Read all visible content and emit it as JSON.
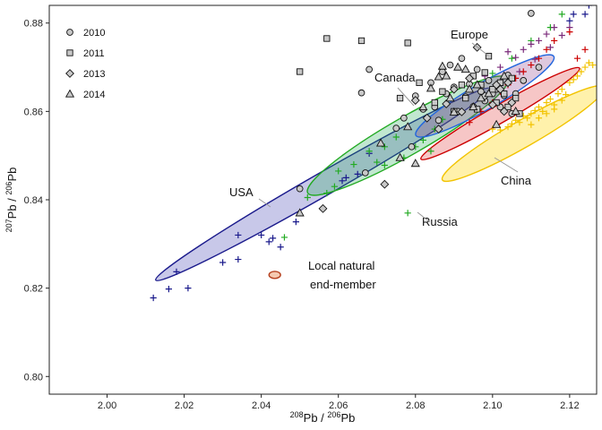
{
  "chart_data": {
    "type": "scatter",
    "xlabel": {
      "sup": "208",
      "text": "Pb / ",
      "sup2": "206",
      "text2": "Pb"
    },
    "ylabel": {
      "sup": "207",
      "text": "Pb / ",
      "sup2": "206",
      "text2": "Pb"
    },
    "xlim": [
      1.985,
      2.127
    ],
    "ylim": [
      0.796,
      0.884
    ],
    "xticks": [
      2.0,
      2.02,
      2.04,
      2.06,
      2.08,
      2.1,
      2.12
    ],
    "yticks": [
      0.8,
      0.82,
      0.84,
      0.86,
      0.88
    ],
    "xtick_labels": [
      "2.00",
      "2.02",
      "2.04",
      "2.06",
      "2.08",
      "2.10",
      "2.12"
    ],
    "ytick_labels": [
      "0.80",
      "0.82",
      "0.84",
      "0.86",
      "0.88"
    ],
    "legend": [
      {
        "label": "2010",
        "marker": "circle"
      },
      {
        "label": "2011",
        "marker": "square"
      },
      {
        "label": "2013",
        "marker": "diamond"
      },
      {
        "label": "2014",
        "marker": "triangle"
      }
    ],
    "region_labels": {
      "europe": "Europe",
      "canada": "Canada",
      "usa": "USA",
      "china": "China",
      "russia": "Russia",
      "local_line1": "Local natural",
      "local_line2": "end-member"
    },
    "colors": {
      "usa": "#1a1a8c",
      "usa_fill": "#3b3bb0",
      "canada": "#22aa22",
      "canada_fill": "#22aa55",
      "europe": "#2266dd",
      "europe_fill": "#8a3a8a",
      "russia": "#cc0000",
      "russia_fill": "#dd3333",
      "china": "#f2c300",
      "china_fill": "#ffe566",
      "local": "#b5401e",
      "local_fill": "#f4c4a8"
    },
    "ellipses": [
      {
        "name": "usa",
        "cx": 2.056,
        "cy": 0.8435,
        "len": 0.097,
        "wid": 0.0052,
        "angle_deg": 33.2
      },
      {
        "name": "canada",
        "cx": 2.078,
        "cy": 0.8545,
        "len": 0.058,
        "wid": 0.0085,
        "angle_deg": 33.2
      },
      {
        "name": "europe",
        "cx": 2.098,
        "cy": 0.8635,
        "len": 0.04,
        "wid": 0.006,
        "angle_deg": 33.2
      },
      {
        "name": "russia",
        "cx": 2.102,
        "cy": 0.8595,
        "len": 0.046,
        "wid": 0.004,
        "angle_deg": 33.2
      },
      {
        "name": "china",
        "cx": 2.108,
        "cy": 0.855,
        "len": 0.047,
        "wid": 0.006,
        "angle_deg": 33.2
      },
      {
        "name": "local",
        "cx": 2.0435,
        "cy": 0.823,
        "len": 0.003,
        "wid": 0.001,
        "angle_deg": 0
      }
    ],
    "series": [
      {
        "name": "2010",
        "marker": "circle",
        "points": [
          [
            2.05,
            0.8425
          ],
          [
            2.066,
            0.8642
          ],
          [
            2.067,
            0.8461
          ],
          [
            2.068,
            0.8695
          ],
          [
            2.075,
            0.8562
          ],
          [
            2.077,
            0.8585
          ],
          [
            2.079,
            0.852
          ],
          [
            2.08,
            0.8635
          ],
          [
            2.082,
            0.8605
          ],
          [
            2.084,
            0.8665
          ],
          [
            2.085,
            0.861
          ],
          [
            2.086,
            0.858
          ],
          [
            2.087,
            0.869
          ],
          [
            2.088,
            0.864
          ],
          [
            2.089,
            0.8705
          ],
          [
            2.09,
            0.8655
          ],
          [
            2.091,
            0.86
          ],
          [
            2.092,
            0.872
          ],
          [
            2.093,
            0.8633
          ],
          [
            2.094,
            0.8662
          ],
          [
            2.095,
            0.8611
          ],
          [
            2.096,
            0.8695
          ],
          [
            2.097,
            0.8645
          ],
          [
            2.098,
            0.8624
          ],
          [
            2.099,
            0.867
          ],
          [
            2.1,
            0.864
          ],
          [
            2.101,
            0.865
          ],
          [
            2.102,
            0.861
          ],
          [
            2.103,
            0.8636
          ],
          [
            2.104,
            0.8682
          ],
          [
            2.105,
            0.8595
          ],
          [
            2.106,
            0.864
          ],
          [
            2.108,
            0.867
          ],
          [
            2.11,
            0.8822
          ],
          [
            2.112,
            0.87
          ]
        ]
      },
      {
        "name": "2011",
        "marker": "square",
        "points": [
          [
            2.05,
            0.869
          ],
          [
            2.057,
            0.8765
          ],
          [
            2.066,
            0.876
          ],
          [
            2.076,
            0.863
          ],
          [
            2.078,
            0.8755
          ],
          [
            2.081,
            0.8665
          ],
          [
            2.085,
            0.862
          ],
          [
            2.087,
            0.8645
          ],
          [
            2.09,
            0.86
          ],
          [
            2.092,
            0.866
          ],
          [
            2.093,
            0.863
          ],
          [
            2.095,
            0.868
          ],
          [
            2.096,
            0.8605
          ],
          [
            2.097,
            0.866
          ],
          [
            2.098,
            0.8688
          ],
          [
            2.099,
            0.8725
          ],
          [
            2.1,
            0.865
          ],
          [
            2.101,
            0.862
          ],
          [
            2.102,
            0.8665
          ],
          [
            2.103,
            0.864
          ],
          [
            2.104,
            0.861
          ],
          [
            2.105,
            0.8675
          ],
          [
            2.106,
            0.863
          ],
          [
            2.107,
            0.8595
          ]
        ]
      },
      {
        "name": "2013",
        "marker": "diamond",
        "points": [
          [
            2.056,
            0.838
          ],
          [
            2.072,
            0.8435
          ],
          [
            2.08,
            0.8625
          ],
          [
            2.083,
            0.8585
          ],
          [
            2.086,
            0.856
          ],
          [
            2.088,
            0.8617
          ],
          [
            2.09,
            0.865
          ],
          [
            2.092,
            0.8599
          ],
          [
            2.094,
            0.8675
          ],
          [
            2.096,
            0.8745
          ],
          [
            2.098,
            0.8635
          ],
          [
            2.1,
            0.8615
          ],
          [
            2.101,
            0.866
          ],
          [
            2.102,
            0.865
          ],
          [
            2.103,
            0.86
          ],
          [
            2.104,
            0.8665
          ],
          [
            2.105,
            0.862
          ]
        ]
      },
      {
        "name": "2014",
        "marker": "triangle",
        "points": [
          [
            2.05,
            0.837
          ],
          [
            2.071,
            0.8528
          ],
          [
            2.076,
            0.8495
          ],
          [
            2.078,
            0.8565
          ],
          [
            2.08,
            0.8482
          ],
          [
            2.082,
            0.861
          ],
          [
            2.084,
            0.8652
          ],
          [
            2.086,
            0.8678
          ],
          [
            2.087,
            0.8702
          ],
          [
            2.088,
            0.868
          ],
          [
            2.089,
            0.863
          ],
          [
            2.09,
            0.8598
          ],
          [
            2.091,
            0.87
          ],
          [
            2.093,
            0.8695
          ],
          [
            2.094,
            0.865
          ],
          [
            2.095,
            0.861
          ],
          [
            2.096,
            0.866
          ],
          [
            2.097,
            0.863
          ],
          [
            2.099,
            0.864
          ],
          [
            2.101,
            0.857
          ],
          [
            2.103,
            0.868
          ],
          [
            2.106,
            0.86
          ]
        ]
      },
      {
        "name": "USA samples",
        "marker": "plus",
        "color": "#1a1a8c",
        "points": [
          [
            2.012,
            0.8178
          ],
          [
            2.016,
            0.8198
          ],
          [
            2.018,
            0.8237
          ],
          [
            2.021,
            0.82
          ],
          [
            2.03,
            0.8258
          ],
          [
            2.034,
            0.8265
          ],
          [
            2.034,
            0.832
          ],
          [
            2.04,
            0.832
          ],
          [
            2.042,
            0.8305
          ],
          [
            2.043,
            0.8313
          ],
          [
            2.045,
            0.8293
          ],
          [
            2.049,
            0.835
          ],
          [
            2.061,
            0.8443
          ],
          [
            2.062,
            0.845
          ],
          [
            2.065,
            0.8458
          ],
          [
            2.068,
            0.8505
          ],
          [
            2.12,
            0.8805
          ],
          [
            2.121,
            0.882
          ],
          [
            2.124,
            0.882
          ],
          [
            2.125,
            0.884
          ]
        ]
      },
      {
        "name": "Canada samples",
        "marker": "plus",
        "color": "#22aa22",
        "points": [
          [
            2.046,
            0.8315
          ],
          [
            2.052,
            0.8405
          ],
          [
            2.057,
            0.8415
          ],
          [
            2.059,
            0.843
          ],
          [
            2.06,
            0.8465
          ],
          [
            2.064,
            0.848
          ],
          [
            2.068,
            0.851
          ],
          [
            2.07,
            0.8485
          ],
          [
            2.072,
            0.8478
          ],
          [
            2.072,
            0.852
          ],
          [
            2.075,
            0.8542
          ],
          [
            2.077,
            0.8495
          ],
          [
            2.078,
            0.837
          ],
          [
            2.08,
            0.852
          ],
          [
            2.082,
            0.8535
          ],
          [
            2.084,
            0.851
          ],
          [
            2.085,
            0.856
          ],
          [
            2.087,
            0.8582
          ],
          [
            2.09,
            0.86
          ],
          [
            2.093,
            0.863
          ],
          [
            2.096,
            0.866
          ],
          [
            2.1,
            0.8686
          ],
          [
            2.105,
            0.872
          ],
          [
            2.11,
            0.876
          ],
          [
            2.115,
            0.879
          ],
          [
            2.118,
            0.882
          ]
        ]
      },
      {
        "name": "Europe samples",
        "marker": "plus",
        "color": "#7a2a7a",
        "points": [
          [
            2.098,
            0.868
          ],
          [
            2.102,
            0.87
          ],
          [
            2.104,
            0.8735
          ],
          [
            2.106,
            0.8722
          ],
          [
            2.108,
            0.874
          ],
          [
            2.11,
            0.8752
          ],
          [
            2.112,
            0.876
          ],
          [
            2.114,
            0.8775
          ],
          [
            2.116,
            0.879
          ],
          [
            2.118,
            0.8772
          ],
          [
            2.12,
            0.879
          ],
          [
            2.107,
            0.869
          ],
          [
            2.111,
            0.8718
          ],
          [
            2.115,
            0.8745
          ]
        ]
      },
      {
        "name": "Russia samples",
        "marker": "plus",
        "color": "#cc0000",
        "points": [
          [
            2.094,
            0.8575
          ],
          [
            2.097,
            0.86
          ],
          [
            2.1,
            0.862
          ],
          [
            2.102,
            0.8645
          ],
          [
            2.104,
            0.866
          ],
          [
            2.106,
            0.8675
          ],
          [
            2.108,
            0.869
          ],
          [
            2.11,
            0.8705
          ],
          [
            2.112,
            0.872
          ],
          [
            2.114,
            0.874
          ],
          [
            2.116,
            0.876
          ],
          [
            2.12,
            0.878
          ],
          [
            2.122,
            0.872
          ],
          [
            2.124,
            0.874
          ]
        ]
      },
      {
        "name": "China samples",
        "marker": "plus",
        "color": "#f2c300",
        "points": [
          [
            2.1,
            0.856
          ],
          [
            2.102,
            0.8558
          ],
          [
            2.104,
            0.8565
          ],
          [
            2.105,
            0.8572
          ],
          [
            2.106,
            0.858
          ],
          [
            2.107,
            0.8575
          ],
          [
            2.108,
            0.859
          ],
          [
            2.109,
            0.8585
          ],
          [
            2.11,
            0.8595
          ],
          [
            2.111,
            0.8602
          ],
          [
            2.112,
            0.861
          ],
          [
            2.113,
            0.86
          ],
          [
            2.114,
            0.862
          ],
          [
            2.115,
            0.8628
          ],
          [
            2.116,
            0.8615
          ],
          [
            2.117,
            0.864
          ],
          [
            2.118,
            0.865
          ],
          [
            2.119,
            0.8638
          ],
          [
            2.12,
            0.8665
          ],
          [
            2.121,
            0.8672
          ],
          [
            2.122,
            0.868
          ],
          [
            2.123,
            0.869
          ],
          [
            2.124,
            0.87
          ],
          [
            2.125,
            0.871
          ],
          [
            2.126,
            0.8705
          ],
          [
            2.11,
            0.857
          ],
          [
            2.112,
            0.8585
          ],
          [
            2.114,
            0.8595
          ],
          [
            2.116,
            0.8605
          ],
          [
            2.118,
            0.8625
          ]
        ]
      }
    ]
  }
}
